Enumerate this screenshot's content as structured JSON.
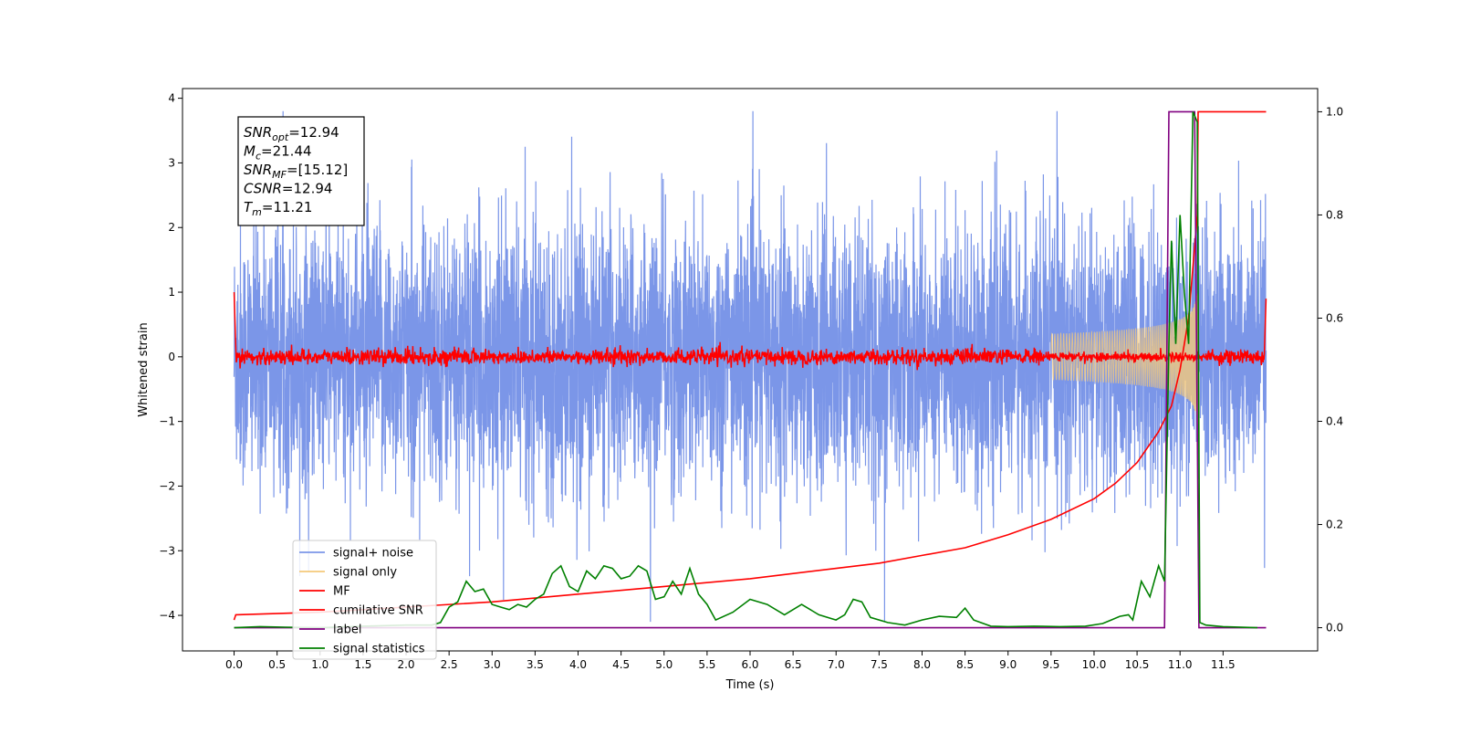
{
  "chart_data": {
    "type": "line",
    "title": "",
    "xlabel": "Time (s)",
    "ylabel": "Whitened strain",
    "x_ticks": [
      "0.0",
      "0.5",
      "1.0",
      "1.5",
      "2.0",
      "2.5",
      "3.0",
      "3.5",
      "4.0",
      "4.5",
      "5.0",
      "5.5",
      "6.0",
      "6.5",
      "7.0",
      "7.5",
      "8.0",
      "8.5",
      "9.0",
      "9.5",
      "10.0",
      "10.5",
      "11.0",
      "11.5"
    ],
    "x_tick_values": [
      0,
      0.5,
      1,
      1.5,
      2,
      2.5,
      3,
      3.5,
      4,
      4.5,
      5,
      5.5,
      6,
      6.5,
      7,
      7.5,
      8,
      8.5,
      9,
      9.5,
      10,
      10.5,
      11,
      11.5
    ],
    "y_ticks": [
      "4",
      "3",
      "2",
      "1",
      "0",
      "−1",
      "−2",
      "−3",
      "−4"
    ],
    "y_tick_values": [
      4,
      3,
      2,
      1,
      0,
      -1,
      -2,
      -3,
      -4
    ],
    "y2_ticks": [
      "1.0",
      "0.8",
      "0.6",
      "0.4",
      "0.2",
      "0.0"
    ],
    "y2_tick_values": [
      1.0,
      0.8,
      0.6,
      0.4,
      0.2,
      0.0
    ],
    "xlim": [
      -0.6,
      12.6
    ],
    "ylim": [
      -4.55,
      4.15
    ],
    "y2lim": [
      -0.045,
      1.045
    ],
    "grid": false,
    "legend_position": "lower-left",
    "annotation": {
      "lines": [
        {
          "sym": "SNR",
          "sub": "opt",
          "value": "=12.94"
        },
        {
          "sym": "M",
          "sub": "c",
          "value": "=21.44"
        },
        {
          "sym": "SNR",
          "sub": "MF",
          "value": "=[15.12]"
        },
        {
          "sym": "CSNR",
          "sub": "",
          "value": "=12.94"
        },
        {
          "sym": "T",
          "sub": "m",
          "value": "=11.21"
        }
      ]
    },
    "series": [
      {
        "name": "signal+ noise",
        "color": "#7b96e8",
        "axis": "left",
        "kind": "noise",
        "x_range": [
          0,
          12
        ],
        "envelope": 1.0
      },
      {
        "name": "signal only",
        "color": "#f5c97a",
        "axis": "left",
        "kind": "chirp",
        "x_range": [
          9.5,
          11.21
        ],
        "peak_amplitude": 0.9
      },
      {
        "name": "MF",
        "color": "#ff0000",
        "axis": "left",
        "kind": "mf",
        "x_range": [
          0,
          12
        ],
        "start": 1.0,
        "end": 0.9,
        "noise": 0.06
      },
      {
        "name": "cumilative SNR",
        "color": "#ff0000",
        "axis": "right",
        "x": [
          0,
          0.02,
          1,
          2,
          3,
          4,
          5,
          6,
          7,
          7.5,
          8,
          8.5,
          9,
          9.5,
          10,
          10.25,
          10.5,
          10.75,
          10.9,
          11.0,
          11.1,
          11.2,
          11.21,
          11.25,
          12.0
        ],
        "values": [
          0.015,
          0.025,
          0.03,
          0.04,
          0.05,
          0.065,
          0.08,
          0.095,
          0.115,
          0.125,
          0.14,
          0.155,
          0.18,
          0.21,
          0.25,
          0.28,
          0.32,
          0.38,
          0.43,
          0.5,
          0.6,
          0.8,
          1.0,
          1.0,
          1.0
        ]
      },
      {
        "name": "label",
        "color": "#800080",
        "axis": "right",
        "x": [
          0,
          10.82,
          10.87,
          11.17,
          11.22,
          12.0
        ],
        "values": [
          0,
          0,
          1,
          1,
          0,
          0
        ]
      },
      {
        "name": "signal statistics",
        "color": "#008000",
        "axis": "right",
        "x": [
          0,
          0.3,
          0.6,
          1.0,
          1.5,
          2.0,
          2.3,
          2.4,
          2.5,
          2.6,
          2.7,
          2.8,
          2.9,
          3.0,
          3.1,
          3.2,
          3.3,
          3.4,
          3.5,
          3.6,
          3.7,
          3.8,
          3.9,
          4.0,
          4.1,
          4.2,
          4.3,
          4.4,
          4.5,
          4.6,
          4.7,
          4.8,
          4.9,
          5.0,
          5.1,
          5.2,
          5.3,
          5.4,
          5.5,
          5.6,
          5.8,
          6.0,
          6.2,
          6.4,
          6.6,
          6.8,
          7.0,
          7.1,
          7.2,
          7.3,
          7.4,
          7.6,
          7.8,
          8.0,
          8.2,
          8.4,
          8.5,
          8.6,
          8.8,
          9.0,
          9.3,
          9.6,
          9.9,
          10.1,
          10.2,
          10.3,
          10.4,
          10.45,
          10.55,
          10.65,
          10.75,
          10.82,
          10.87,
          10.9,
          10.95,
          11.0,
          11.05,
          11.1,
          11.15,
          11.2,
          11.23,
          11.3,
          11.5,
          11.9
        ],
        "values": [
          0.0,
          0.002,
          0.001,
          0.0,
          0.003,
          0.005,
          0.005,
          0.01,
          0.04,
          0.05,
          0.09,
          0.07,
          0.075,
          0.045,
          0.04,
          0.035,
          0.045,
          0.04,
          0.055,
          0.065,
          0.105,
          0.12,
          0.08,
          0.07,
          0.11,
          0.095,
          0.12,
          0.115,
          0.095,
          0.1,
          0.12,
          0.11,
          0.055,
          0.06,
          0.09,
          0.065,
          0.115,
          0.065,
          0.045,
          0.015,
          0.03,
          0.055,
          0.045,
          0.025,
          0.045,
          0.025,
          0.015,
          0.025,
          0.055,
          0.05,
          0.02,
          0.01,
          0.005,
          0.015,
          0.022,
          0.02,
          0.038,
          0.015,
          0.003,
          0.002,
          0.003,
          0.002,
          0.003,
          0.008,
          0.015,
          0.022,
          0.025,
          0.015,
          0.09,
          0.06,
          0.12,
          0.09,
          0.55,
          0.75,
          0.55,
          0.8,
          0.65,
          0.55,
          1.0,
          0.98,
          0.01,
          0.005,
          0.002,
          0.0
        ]
      }
    ]
  }
}
